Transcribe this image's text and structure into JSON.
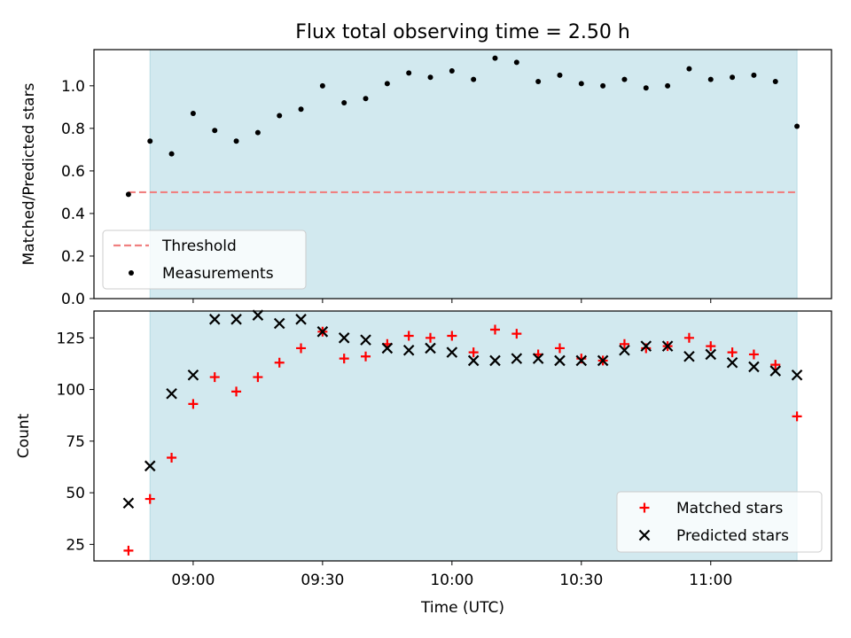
{
  "figure": {
    "title": "Flux total observing time = 2.50 h"
  },
  "chart_data": [
    {
      "type": "scatter",
      "panel": "top",
      "title": "Flux total observing time = 2.50 h",
      "xlabel": "",
      "ylabel": "Matched/Predicted stars",
      "x_axis": "time (UTC)",
      "xlim": [
        "08:37",
        "11:28"
      ],
      "ylim": [
        0,
        1.17
      ],
      "yticks": [
        0.0,
        0.2,
        0.4,
        0.6,
        0.8,
        1.0
      ],
      "ytick_labels": [
        "0.0",
        "0.2",
        "0.4",
        "0.6",
        "0.8",
        "1.0"
      ],
      "xticks": [
        "09:00",
        "09:30",
        "10:00",
        "10:30",
        "11:00"
      ],
      "show_xtick_labels": false,
      "observing_window": {
        "start": "08:50",
        "end": "11:20",
        "color": "#d2e9ef"
      },
      "threshold": {
        "name": "Threshold",
        "value": 0.5,
        "x_start": "08:45",
        "x_end": "11:20",
        "color": "#f08080",
        "style": "dashed"
      },
      "series": [
        {
          "name": "Measurements",
          "marker": "dot",
          "color": "#000000",
          "x": [
            "08:45",
            "08:50",
            "08:55",
            "09:00",
            "09:05",
            "09:10",
            "09:15",
            "09:20",
            "09:25",
            "09:30",
            "09:35",
            "09:40",
            "09:45",
            "09:50",
            "09:55",
            "10:00",
            "10:05",
            "10:10",
            "10:15",
            "10:20",
            "10:25",
            "10:30",
            "10:35",
            "10:40",
            "10:45",
            "10:50",
            "10:55",
            "11:00",
            "11:05",
            "11:10",
            "11:15",
            "11:20"
          ],
          "y": [
            0.49,
            0.74,
            0.68,
            0.87,
            0.79,
            0.74,
            0.78,
            0.86,
            0.89,
            1.0,
            0.92,
            0.94,
            1.01,
            1.06,
            1.04,
            1.07,
            1.03,
            1.13,
            1.11,
            1.02,
            1.05,
            1.01,
            1.0,
            1.03,
            0.99,
            1.0,
            1.08,
            1.03,
            1.04,
            1.05,
            1.02,
            0.81
          ]
        }
      ],
      "legend": {
        "position": "lower-left",
        "entries": [
          "Threshold",
          "Measurements"
        ]
      }
    },
    {
      "type": "scatter",
      "panel": "bottom",
      "xlabel": "Time (UTC)",
      "ylabel": "Count",
      "xlim": [
        "08:37",
        "11:28"
      ],
      "ylim": [
        17,
        138
      ],
      "yticks": [
        25,
        50,
        75,
        100,
        125
      ],
      "ytick_labels": [
        "25",
        "50",
        "75",
        "100",
        "125"
      ],
      "xticks": [
        "09:00",
        "09:30",
        "10:00",
        "10:30",
        "11:00"
      ],
      "xtick_labels": [
        "09:00",
        "09:30",
        "10:00",
        "10:30",
        "11:00"
      ],
      "observing_window": {
        "start": "08:50",
        "end": "11:20",
        "color": "#d2e9ef"
      },
      "series": [
        {
          "name": "Matched stars",
          "marker": "plus",
          "color": "#ff0000",
          "x": [
            "08:45",
            "08:50",
            "08:55",
            "09:00",
            "09:05",
            "09:10",
            "09:15",
            "09:20",
            "09:25",
            "09:30",
            "09:35",
            "09:40",
            "09:45",
            "09:50",
            "09:55",
            "10:00",
            "10:05",
            "10:10",
            "10:15",
            "10:20",
            "10:25",
            "10:30",
            "10:35",
            "10:40",
            "10:45",
            "10:50",
            "10:55",
            "11:00",
            "11:05",
            "11:10",
            "11:15",
            "11:20"
          ],
          "y": [
            22,
            47,
            67,
            93,
            106,
            99,
            106,
            113,
            120,
            128,
            115,
            116,
            122,
            126,
            125,
            126,
            118,
            129,
            127,
            117,
            120,
            115,
            114,
            122,
            120,
            121,
            125,
            121,
            118,
            117,
            112,
            87
          ]
        },
        {
          "name": "Predicted stars",
          "marker": "x",
          "color": "#000000",
          "x": [
            "08:45",
            "08:50",
            "08:55",
            "09:00",
            "09:05",
            "09:10",
            "09:15",
            "09:20",
            "09:25",
            "09:30",
            "09:35",
            "09:40",
            "09:45",
            "09:50",
            "09:55",
            "10:00",
            "10:05",
            "10:10",
            "10:15",
            "10:20",
            "10:25",
            "10:30",
            "10:35",
            "10:40",
            "10:45",
            "10:50",
            "10:55",
            "11:00",
            "11:05",
            "11:10",
            "11:15",
            "11:20"
          ],
          "y": [
            45,
            63,
            98,
            107,
            134,
            134,
            136,
            132,
            134,
            128,
            125,
            124,
            120,
            119,
            120,
            118,
            114,
            114,
            115,
            115,
            114,
            114,
            114,
            119,
            121,
            121,
            116,
            117,
            113,
            111,
            109,
            107
          ]
        }
      ],
      "legend": {
        "position": "lower-right",
        "entries": [
          "Matched stars",
          "Predicted stars"
        ]
      }
    }
  ]
}
